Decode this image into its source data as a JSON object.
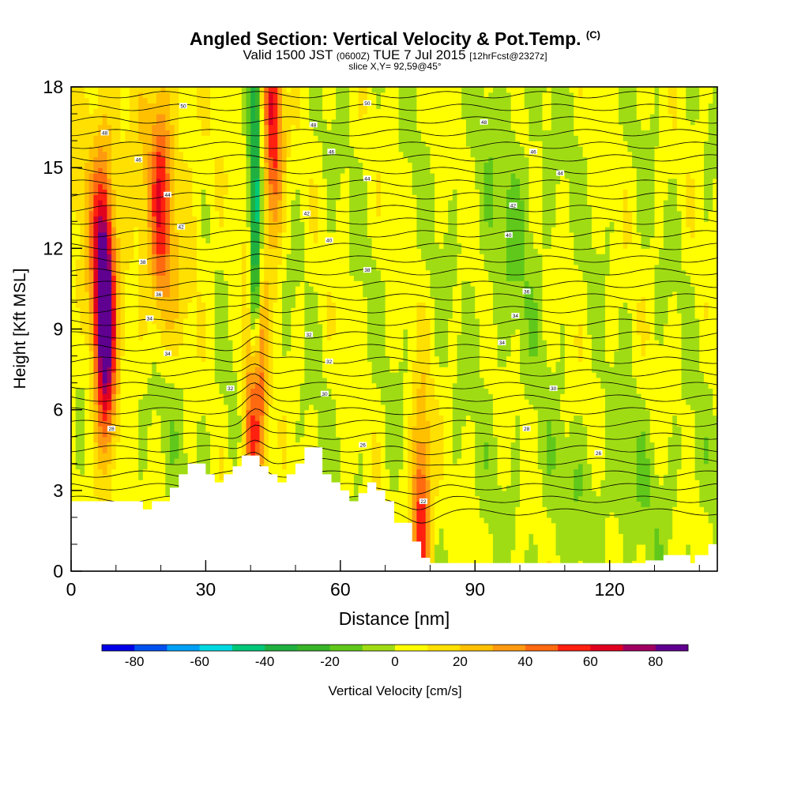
{
  "chart_data": {
    "type": "heatmap",
    "title": "Angled Section: Vertical Velocity & Pot.Temp.",
    "title_mark": "(C)",
    "subtitle": {
      "valid": "Valid 1500 JST",
      "utc": "(0600Z)",
      "date": "TUE 7 Jul 2015",
      "fcst": "[12hrFcst@2327z]"
    },
    "slice_label": "slice X,Y= 92,59@45°",
    "xlabel": "Distance [nm]",
    "ylabel": "Height [Kft MSL]",
    "xlim": [
      0,
      144
    ],
    "ylim": [
      0,
      18
    ],
    "xticks": [
      "0",
      "30",
      "60",
      "90",
      "120"
    ],
    "yticks": [
      "0",
      "3",
      "6",
      "9",
      "12",
      "15",
      "18"
    ],
    "colorbar": {
      "label": "Vertical Velocity [cm/s]",
      "ticks": [
        "-80",
        "-60",
        "-40",
        "-20",
        "0",
        "20",
        "40",
        "60",
        "80"
      ],
      "min": -90,
      "max": 90,
      "step": 10,
      "colors": [
        "#0000e6",
        "#0050f0",
        "#00a0f5",
        "#00d8e0",
        "#00c878",
        "#20b040",
        "#38b428",
        "#60c81a",
        "#a0dc14",
        "#ffff00",
        "#ffe000",
        "#ffc000",
        "#ff9a10",
        "#ff6a10",
        "#ff2010",
        "#e00020",
        "#a00060",
        "#600090"
      ]
    },
    "terrain_top_kft": [
      [
        0,
        2.6
      ],
      [
        16,
        2.6
      ],
      [
        16,
        2.3
      ],
      [
        18,
        2.3
      ],
      [
        18,
        2.6
      ],
      [
        22,
        2.6
      ],
      [
        22,
        3.1
      ],
      [
        24,
        3.1
      ],
      [
        24,
        3.6
      ],
      [
        26,
        3.6
      ],
      [
        26,
        4.0
      ],
      [
        30,
        4.0
      ],
      [
        30,
        3.6
      ],
      [
        32,
        3.6
      ],
      [
        32,
        3.3
      ],
      [
        34,
        3.3
      ],
      [
        34,
        3.6
      ],
      [
        36,
        3.6
      ],
      [
        36,
        3.9
      ],
      [
        38,
        3.9
      ],
      [
        38,
        4.3
      ],
      [
        42,
        4.3
      ],
      [
        42,
        3.9
      ],
      [
        44,
        3.9
      ],
      [
        44,
        3.6
      ],
      [
        46,
        3.6
      ],
      [
        46,
        3.3
      ],
      [
        48,
        3.3
      ],
      [
        48,
        3.6
      ],
      [
        50,
        3.6
      ],
      [
        50,
        4.0
      ],
      [
        52,
        4.0
      ],
      [
        52,
        4.6
      ],
      [
        56,
        4.6
      ],
      [
        56,
        3.6
      ],
      [
        58,
        3.6
      ],
      [
        58,
        3.3
      ],
      [
        60,
        3.3
      ],
      [
        60,
        3.0
      ],
      [
        62,
        3.0
      ],
      [
        62,
        2.6
      ],
      [
        64,
        2.6
      ],
      [
        64,
        2.9
      ],
      [
        66,
        2.9
      ],
      [
        66,
        3.3
      ],
      [
        68,
        3.3
      ],
      [
        68,
        3.0
      ],
      [
        70,
        3.0
      ],
      [
        70,
        2.6
      ],
      [
        72,
        2.6
      ],
      [
        72,
        1.8
      ],
      [
        76,
        1.8
      ],
      [
        76,
        1.1
      ],
      [
        78,
        1.1
      ],
      [
        78,
        0.5
      ],
      [
        80,
        0.5
      ],
      [
        80,
        0.3
      ],
      [
        82,
        0.3
      ],
      [
        82,
        0.3
      ],
      [
        84,
        0.3
      ],
      [
        84,
        0.3
      ],
      [
        128,
        0.3
      ],
      [
        128,
        0.4
      ],
      [
        132,
        0.4
      ],
      [
        132,
        0.6
      ],
      [
        138,
        0.6
      ],
      [
        138,
        0.3
      ],
      [
        139,
        0.3
      ],
      [
        139,
        0.6
      ],
      [
        142,
        0.6
      ],
      [
        142,
        1.0
      ],
      [
        148,
        1.0
      ],
      [
        148,
        1.3
      ],
      [
        155,
        1.3
      ]
    ],
    "updrafts_cm_s": [
      {
        "x_nm": 7,
        "z_kft": 10.5,
        "w": 65
      },
      {
        "x_nm": 8,
        "z_kft": 7.5,
        "w": 45
      },
      {
        "x_nm": 20,
        "z_kft": 14,
        "w": 35
      },
      {
        "x_nm": 41,
        "z_kft": 6.0,
        "w": 75
      },
      {
        "x_nm": 45,
        "z_kft": 16.5,
        "w": 60
      },
      {
        "x_nm": 78,
        "z_kft": 1.5,
        "w": 60
      }
    ],
    "downdrafts_cm_s": [
      {
        "x_nm": 41,
        "z_kft": 12,
        "w": -65
      },
      {
        "x_nm": 98,
        "z_kft": 12,
        "w": -25
      }
    ],
    "theta_contour_labels": [
      {
        "label": "50",
        "x_nm": 25,
        "z_kft": 17.3
      },
      {
        "label": "48",
        "x_nm": 7.5,
        "z_kft": 16.3
      },
      {
        "label": "48",
        "x_nm": 54,
        "z_kft": 16.6
      },
      {
        "label": "50",
        "x_nm": 66,
        "z_kft": 17.4
      },
      {
        "label": "48",
        "x_nm": 92,
        "z_kft": 16.7
      },
      {
        "label": "46",
        "x_nm": 15,
        "z_kft": 15.3
      },
      {
        "label": "46",
        "x_nm": 58,
        "z_kft": 15.6
      },
      {
        "label": "46",
        "x_nm": 103,
        "z_kft": 15.6
      },
      {
        "label": "44",
        "x_nm": 21.5,
        "z_kft": 14.0
      },
      {
        "label": "44",
        "x_nm": 66,
        "z_kft": 14.6
      },
      {
        "label": "44",
        "x_nm": 109,
        "z_kft": 14.8
      },
      {
        "label": "42",
        "x_nm": 24.5,
        "z_kft": 12.8
      },
      {
        "label": "42",
        "x_nm": 52.5,
        "z_kft": 13.3
      },
      {
        "label": "42",
        "x_nm": 98.5,
        "z_kft": 13.6
      },
      {
        "label": "40",
        "x_nm": 57.5,
        "z_kft": 12.3
      },
      {
        "label": "40",
        "x_nm": 97.5,
        "z_kft": 12.5
      },
      {
        "label": "38",
        "x_nm": 16,
        "z_kft": 11.5
      },
      {
        "label": "38",
        "x_nm": 66,
        "z_kft": 11.2
      },
      {
        "label": "36",
        "x_nm": 19.5,
        "z_kft": 10.3
      },
      {
        "label": "36",
        "x_nm": 101.5,
        "z_kft": 10.4
      },
      {
        "label": "34",
        "x_nm": 17.5,
        "z_kft": 9.4
      },
      {
        "label": "34",
        "x_nm": 99,
        "z_kft": 9.5
      },
      {
        "label": "34",
        "x_nm": 96,
        "z_kft": 8.5
      },
      {
        "label": "34",
        "x_nm": 21.5,
        "z_kft": 8.1
      },
      {
        "label": "32",
        "x_nm": 53,
        "z_kft": 8.8
      },
      {
        "label": "32",
        "x_nm": 57.5,
        "z_kft": 7.8
      },
      {
        "label": "32",
        "x_nm": 35.5,
        "z_kft": 6.8
      },
      {
        "label": "30",
        "x_nm": 56.5,
        "z_kft": 6.6
      },
      {
        "label": "30",
        "x_nm": 107.5,
        "z_kft": 6.8
      },
      {
        "label": "28",
        "x_nm": 9,
        "z_kft": 5.3
      },
      {
        "label": "28",
        "x_nm": 101.5,
        "z_kft": 5.3
      },
      {
        "label": "26",
        "x_nm": 65,
        "z_kft": 4.7
      },
      {
        "label": "26",
        "x_nm": 117.5,
        "z_kft": 4.4
      },
      {
        "label": "22",
        "x_nm": 78.5,
        "z_kft": 2.6
      }
    ]
  }
}
